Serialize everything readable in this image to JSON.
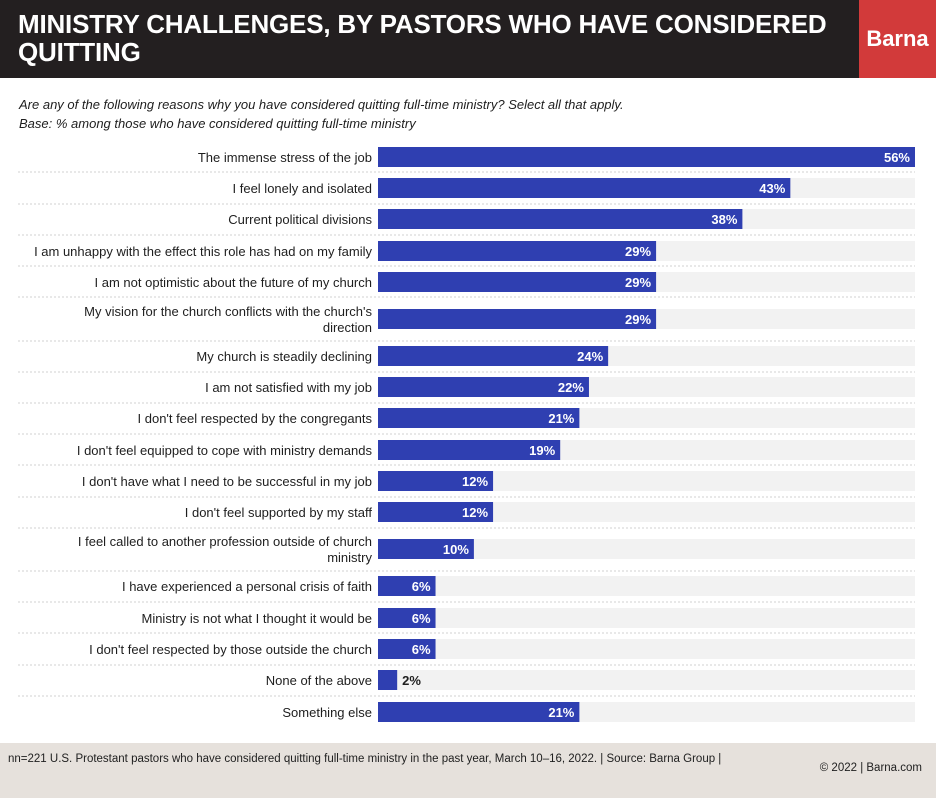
{
  "header": {
    "title": "MINISTRY CHALLENGES, BY PASTORS WHO HAVE CONSIDERED QUITTING",
    "logo": "Barna"
  },
  "question": {
    "line1": "Are any of the following reasons why you have considered quitting full-time ministry? Select all that apply.",
    "line2": "Base: % among those who have considered quitting full-time ministry"
  },
  "colors": {
    "bar": "#2f3fb1",
    "track": "#f2f2f2",
    "header_bg": "#231f20",
    "brand_red": "#d23a3a",
    "footer_bg": "#e6e1dc"
  },
  "chart_data": {
    "type": "bar",
    "orientation": "horizontal",
    "unit": "%",
    "xlim": [
      0,
      56
    ],
    "categories": [
      "The immense stress of the job",
      "I feel lonely and isolated",
      "Current political divisions",
      "I am unhappy with the effect this role has had on my family",
      "I am not optimistic about the future of my church",
      "My vision for the church conflicts with the church's direction",
      "My church is steadily declining",
      "I am not satisfied with my job",
      "I don't feel respected by the congregants",
      "I don't feel equipped to cope with ministry demands",
      "I don't have what I need to be successful in my job",
      "I don't feel supported by my staff",
      "I feel called to another profession outside of church ministry",
      "I have experienced a personal crisis of faith",
      "Ministry is not what I thought it would be",
      "I don't feel respected by those outside the church",
      "None of the above",
      "Something else"
    ],
    "label_lines": [
      [
        "The immense stress of the job"
      ],
      [
        "I feel lonely and isolated"
      ],
      [
        "Current political divisions"
      ],
      [
        "I am unhappy with the effect this role has had on my family"
      ],
      [
        "I am not optimistic about the future of my church"
      ],
      [
        "My vision for the church conflicts with the church's",
        "direction"
      ],
      [
        "My church is steadily declining"
      ],
      [
        "I am not satisfied with my job"
      ],
      [
        "I don't feel respected by the congregants"
      ],
      [
        "I don't feel equipped to cope with ministry demands"
      ],
      [
        "I don't have what I need to be successful in my job"
      ],
      [
        "I don't feel supported by my staff"
      ],
      [
        "I feel called to another profession outside of church",
        "ministry"
      ],
      [
        "I have experienced a personal crisis of faith"
      ],
      [
        "Ministry is not what I thought it would be"
      ],
      [
        "I don't feel respected by those outside the church"
      ],
      [
        "None of the above"
      ],
      [
        "Something else"
      ]
    ],
    "values": [
      56,
      43,
      38,
      29,
      29,
      29,
      24,
      22,
      21,
      19,
      12,
      12,
      10,
      6,
      6,
      6,
      2,
      21
    ],
    "value_labels": [
      "56%",
      "43%",
      "38%",
      "29%",
      "29%",
      "29%",
      "24%",
      "22%",
      "21%",
      "19%",
      "12%",
      "12%",
      "10%",
      "6%",
      "6%",
      "6%",
      "2%",
      "21%"
    ]
  },
  "footer": {
    "note": "nn=221 U.S. Protestant pastors who have considered quitting full-time ministry in the past year, March 10–16, 2022. | Source: Barna Group |",
    "copyright": "© 2022 |  Barna.com"
  }
}
